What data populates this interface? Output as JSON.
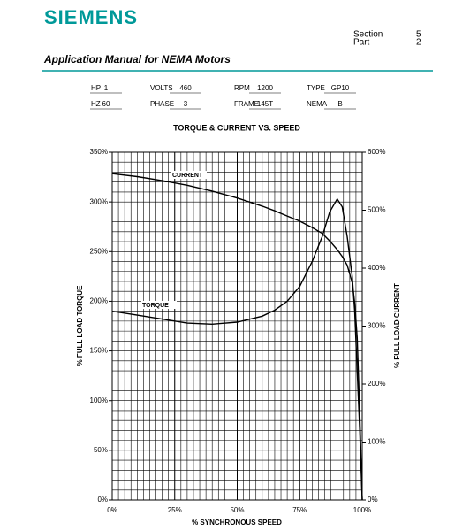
{
  "header": {
    "brand": "SIEMENS",
    "section_label": "Section",
    "section_value": "5",
    "part_label": "Part",
    "part_value": "2",
    "manual_title": "Application Manual for NEMA Motors"
  },
  "specs": {
    "rows": [
      [
        {
          "label": "HP",
          "value": "1"
        },
        {
          "label": "VOLTS",
          "value": "460"
        },
        {
          "label": "RPM",
          "value": "1200"
        },
        {
          "label": "TYPE",
          "value": "GP10"
        }
      ],
      [
        {
          "label": "HZ",
          "value": "60"
        },
        {
          "label": "PHASE",
          "value": "3"
        },
        {
          "label": "FRAME",
          "value": "145T"
        },
        {
          "label": "NEMA",
          "value": "B"
        }
      ]
    ]
  },
  "chart_data": {
    "type": "line",
    "title": "TORQUE & CURRENT VS. SPEED",
    "x_label": "% SYNCHRONOUS SPEED",
    "y_label": "% FULL LOAD TORQUE",
    "y2_label": "% FULL LOAD CURRENT",
    "x": [
      0,
      10,
      20,
      30,
      40,
      50,
      60,
      65,
      70,
      75,
      80,
      84,
      87,
      90,
      92,
      94,
      96,
      97,
      98,
      99,
      100
    ],
    "series": [
      {
        "name": "TORQUE",
        "color": "#000000",
        "values": [
          190,
          186,
          182,
          178,
          177,
          179,
          185,
          191,
          200,
          215,
          240,
          265,
          290,
          303,
          295,
          265,
          225,
          190,
          130,
          70,
          0
        ]
      },
      {
        "name": "CURRENT",
        "color": "#000000",
        "axis": "y2",
        "values": [
          563,
          558,
          551,
          543,
          533,
          521,
          507,
          499,
          490,
          481,
          470,
          460,
          447,
          432,
          420,
          405,
          375,
          340,
          280,
          150,
          0
        ]
      }
    ],
    "xlim": [
      0,
      100
    ],
    "xticks": [
      {
        "value": 0,
        "label": "0%"
      },
      {
        "value": 25,
        "label": "25%"
      },
      {
        "value": 50,
        "label": "50%"
      },
      {
        "value": 75,
        "label": "75%"
      },
      {
        "value": 100,
        "label": "100%"
      }
    ],
    "ylim": [
      0,
      350
    ],
    "yticks": [
      {
        "value": 0,
        "label": "0%"
      },
      {
        "value": 50,
        "label": "50%"
      },
      {
        "value": 100,
        "label": "100%"
      },
      {
        "value": 150,
        "label": "150%"
      },
      {
        "value": 200,
        "label": "200%"
      },
      {
        "value": 250,
        "label": "250%"
      },
      {
        "value": 300,
        "label": "300%"
      },
      {
        "value": 350,
        "label": "350%"
      }
    ],
    "y2lim": [
      0,
      600
    ],
    "y2ticks": [
      {
        "value": 0,
        "label": "0%"
      },
      {
        "value": 100,
        "label": "100%"
      },
      {
        "value": 200,
        "label": "200%"
      },
      {
        "value": 300,
        "label": "300%"
      },
      {
        "value": 400,
        "label": "400%"
      },
      {
        "value": 500,
        "label": "500%"
      },
      {
        "value": 600,
        "label": "600%"
      }
    ],
    "grid": true
  }
}
